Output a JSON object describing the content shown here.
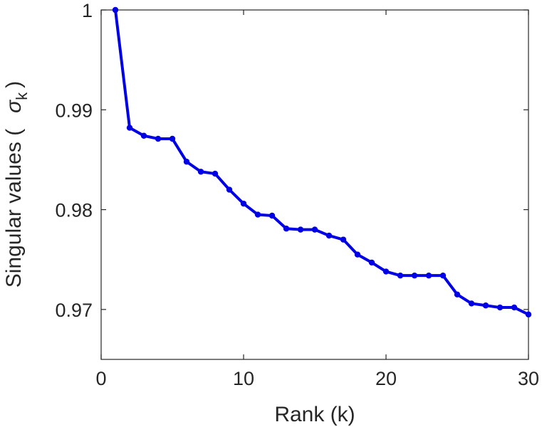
{
  "chart_data": {
    "type": "line",
    "title": "",
    "xlabel": "Rank (k)",
    "ylabel": {
      "prefix": "Singular values (",
      "symbol": "σ",
      "subscript": "k",
      "suffix": ")"
    },
    "xlim": [
      0,
      30
    ],
    "ylim": [
      0.965,
      1.0
    ],
    "xticks": [
      {
        "value": 0,
        "label": "0"
      },
      {
        "value": 10,
        "label": "10"
      },
      {
        "value": 20,
        "label": "20"
      },
      {
        "value": 30,
        "label": "30"
      }
    ],
    "yticks": [
      {
        "value": 0.97,
        "label": "0.97"
      },
      {
        "value": 0.98,
        "label": "0.98"
      },
      {
        "value": 0.99,
        "label": "0.99"
      },
      {
        "value": 1.0,
        "label": "1"
      }
    ],
    "grid": false,
    "series": [
      {
        "color": "#0000e6",
        "marker": "circle",
        "x": [
          1,
          2,
          3,
          4,
          5,
          6,
          7,
          8,
          9,
          10,
          11,
          12,
          13,
          14,
          15,
          16,
          17,
          18,
          19,
          20,
          21,
          22,
          23,
          24,
          25,
          26,
          27,
          28,
          29,
          30
        ],
        "y": [
          1.0,
          0.9882,
          0.9874,
          0.9871,
          0.9871,
          0.9848,
          0.9838,
          0.9836,
          0.982,
          0.9806,
          0.9795,
          0.9794,
          0.9781,
          0.978,
          0.978,
          0.9774,
          0.977,
          0.9755,
          0.9747,
          0.9738,
          0.9734,
          0.9734,
          0.9734,
          0.9734,
          0.9715,
          0.9706,
          0.9704,
          0.9702,
          0.9702,
          0.9695
        ]
      }
    ]
  }
}
